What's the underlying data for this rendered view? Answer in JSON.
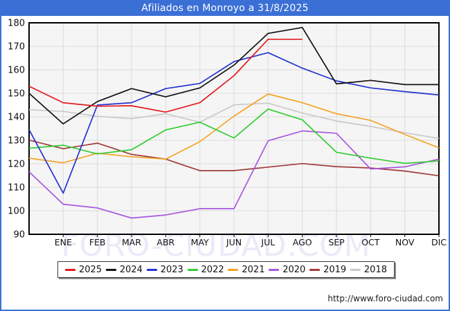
{
  "title_bar": {
    "text": "Afiliados en Monroyo a 31/8/2025"
  },
  "footer": {
    "url": "http://www.foro-ciudad.com"
  },
  "watermark": {
    "text": "FORO-CIUDAD.COM",
    "color": "#eaeaf8"
  },
  "colors": {
    "frame_border": "#3a6fd6",
    "titlebar_bg": "#3a6fd6",
    "plot_bg": "#f5f5f5",
    "gridline": "#dcdcdc",
    "axis": "#000000",
    "tick_text": "#111111"
  },
  "chart_data": {
    "type": "line",
    "title": "Afiliados en Monroyo a 31/8/2025",
    "xlabel": "",
    "ylabel": "",
    "x_categories": [
      "ENE",
      "FEB",
      "MAR",
      "ABR",
      "MAY",
      "JUN",
      "JUL",
      "AGO",
      "SEP",
      "OCT",
      "NOV",
      "DIC"
    ],
    "y_axis": {
      "min": 90,
      "max": 180,
      "tick_step": 10,
      "tick_labels": [
        "90",
        "100",
        "110",
        "120",
        "130",
        "140",
        "150",
        "160",
        "170",
        "180"
      ]
    },
    "grid": true,
    "legend_position": "bottom",
    "note": "Each series begins at the left plot edge with its previous-December value (start_value); monthly points ENE-DIC follow. 2025 data ends in August (a 31/8/2025).",
    "series": [
      {
        "name": "2025",
        "color": "#e41a1c",
        "start_value": 153,
        "values": [
          146,
          144.5,
          144.7,
          142,
          146,
          157.5,
          173,
          173,
          null,
          null,
          null,
          null
        ]
      },
      {
        "name": "2024",
        "color": "#111111",
        "start_value": 150,
        "values": [
          137,
          146.5,
          152,
          148.5,
          152.3,
          162,
          175.5,
          178,
          154,
          155.5,
          153.7,
          153.7
        ]
      },
      {
        "name": "2023",
        "color": "#2533d0",
        "start_value": 134.5,
        "values": [
          107.5,
          145,
          146,
          152,
          154.2,
          163.5,
          167.3,
          160.7,
          155.3,
          152.3,
          150.7,
          149.3
        ]
      },
      {
        "name": "2022",
        "color": "#32cd32",
        "start_value": 126.6,
        "values": [
          127.9,
          124.2,
          126,
          134.4,
          137.7,
          131,
          143.3,
          138.7,
          124.9,
          122.4,
          120.2,
          121.2
        ]
      },
      {
        "name": "2021",
        "color": "#f5a325",
        "start_value": 122.4,
        "values": [
          120.4,
          124.5,
          123,
          122,
          129.4,
          140.3,
          149.7,
          146,
          141.3,
          138.5,
          132.5,
          126.8
        ]
      },
      {
        "name": "2020",
        "color": "#a857e0",
        "start_value": 116.6,
        "values": [
          102.8,
          101.2,
          96.9,
          98.2,
          100.9,
          100.9,
          129.8,
          134,
          133,
          117.8,
          118.7,
          122
        ]
      },
      {
        "name": "2019",
        "color": "#a13b3b",
        "start_value": 130.1,
        "values": [
          126.4,
          128.8,
          124,
          122,
          117.1,
          117.1,
          118.6,
          120.1,
          118.8,
          118.2,
          116.9,
          114.9
        ]
      },
      {
        "name": "2018",
        "color": "#c9c9c9",
        "start_value": 143,
        "values": [
          142.3,
          140.2,
          139.2,
          141.3,
          137.7,
          145.1,
          145.8,
          141.6,
          138.2,
          135.9,
          133.2,
          130.8
        ]
      }
    ]
  }
}
